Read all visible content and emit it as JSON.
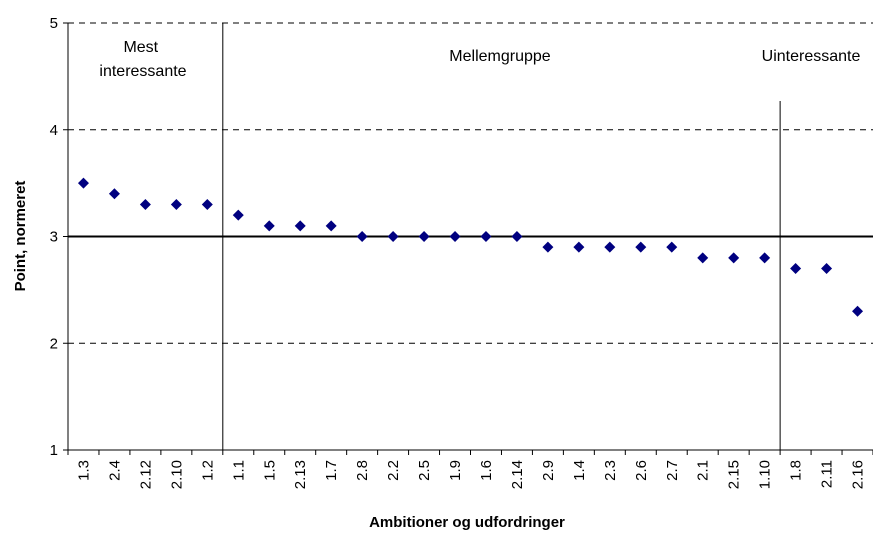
{
  "chart_data": {
    "type": "scatter",
    "title": "",
    "xlabel": "Ambitioner og udfordringer",
    "ylabel": "Point, normeret",
    "ylim": [
      1,
      5
    ],
    "yticks": [
      "1",
      "2",
      "3",
      "4",
      "5"
    ],
    "grid": "horizontal dashed",
    "reference_line": 3,
    "marker_color": "#000080",
    "categories": [
      "1.3",
      "2.4",
      "2.12",
      "2.10",
      "1.2",
      "1.1",
      "1.5",
      "2.13",
      "1.7",
      "2.8",
      "2.2",
      "2.5",
      "1.9",
      "1.6",
      "2.14",
      "2.9",
      "1.4",
      "2.3",
      "2.6",
      "2.7",
      "2.1",
      "2.15",
      "1.10",
      "1.8",
      "2.11",
      "2.16"
    ],
    "values": [
      3.5,
      3.4,
      3.3,
      3.3,
      3.3,
      3.2,
      3.1,
      3.1,
      3.1,
      3.0,
      3.0,
      3.0,
      3.0,
      3.0,
      3.0,
      2.9,
      2.9,
      2.9,
      2.9,
      2.9,
      2.8,
      2.8,
      2.8,
      2.7,
      2.7,
      2.3
    ],
    "groups": [
      {
        "lines": [
          "Mest",
          "interessante"
        ]
      },
      {
        "lines": [
          "Mellemgruppe"
        ]
      },
      {
        "lines": [
          "Uinteressante"
        ]
      }
    ]
  }
}
